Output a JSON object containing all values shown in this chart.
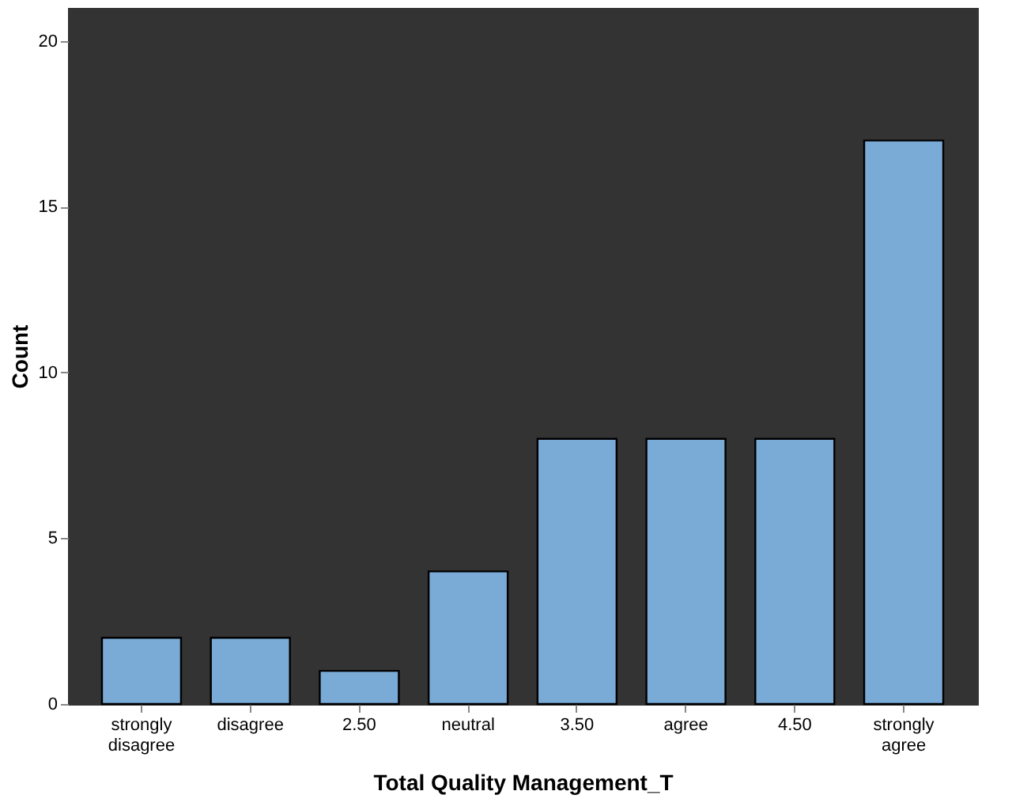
{
  "chart_data": {
    "type": "bar",
    "xlabel": "Total Quality Management_T",
    "ylabel": "Count",
    "categories": [
      "strongly disagree",
      "disagree",
      "2.50",
      "neutral",
      "3.50",
      "agree",
      "4.50",
      "strongly agree"
    ],
    "values": [
      2,
      2,
      1,
      4,
      8,
      8,
      8,
      17
    ],
    "color": "#7aaad6",
    "ylim": [
      0,
      21
    ],
    "yticks": [
      0,
      5,
      10,
      15,
      20
    ],
    "grid": false
  }
}
